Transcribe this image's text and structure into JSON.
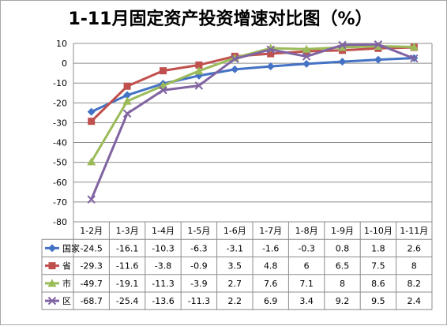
{
  "chart_data": {
    "type": "line",
    "title": "1-11月固定资产投资增速对比图（%）",
    "categories": [
      "1-2月",
      "1-3月",
      "1-4月",
      "1-5月",
      "1-6月",
      "1-7月",
      "1-8月",
      "1-9月",
      "1-10月",
      "1-11月"
    ],
    "y_ticks": [
      "10",
      "0",
      "-10",
      "-20",
      "-30",
      "-40",
      "-50",
      "-60",
      "-70",
      "-80"
    ],
    "ylim": [
      -80,
      10
    ],
    "ytick_step": 10,
    "grid": true,
    "legend": "data-table",
    "series": [
      {
        "name": "国家",
        "color": "#4472c4",
        "marker": "diamond",
        "values": [
          -24.5,
          -16.1,
          -10.3,
          -6.3,
          -3.1,
          -1.6,
          -0.3,
          0.8,
          1.8,
          2.6
        ],
        "labels": [
          "-24.5",
          "-16.1",
          "-10.3",
          "-6.3",
          "-3.1",
          "-1.6",
          "-0.3",
          "0.8",
          "1.8",
          "2.6"
        ]
      },
      {
        "name": "省",
        "color": "#c0504d",
        "marker": "square",
        "values": [
          -29.3,
          -11.6,
          -3.8,
          -0.9,
          3.5,
          4.8,
          6,
          6.5,
          7.5,
          8
        ],
        "labels": [
          "-29.3",
          "-11.6",
          "-3.8",
          "-0.9",
          "3.5",
          "4.8",
          "6",
          "6.5",
          "7.5",
          "8"
        ]
      },
      {
        "name": "市",
        "color": "#9bbb59",
        "marker": "triangle",
        "values": [
          -49.7,
          -19.1,
          -11.3,
          -3.9,
          2.7,
          7.6,
          7.1,
          8,
          8.6,
          8.2
        ],
        "labels": [
          "-49.7",
          "-19.1",
          "-11.3",
          "-3.9",
          "2.7",
          "7.6",
          "7.1",
          "8",
          "8.6",
          "8.2"
        ]
      },
      {
        "name": "区",
        "color": "#8064a2",
        "marker": "x",
        "values": [
          -68.7,
          -25.4,
          -13.6,
          -11.3,
          2.2,
          6.9,
          3.4,
          9.2,
          9.5,
          2.4
        ],
        "labels": [
          "-68.7",
          "-25.4",
          "-13.6",
          "-11.3",
          "2.2",
          "6.9",
          "3.4",
          "9.2",
          "9.5",
          "2.4"
        ]
      }
    ]
  }
}
